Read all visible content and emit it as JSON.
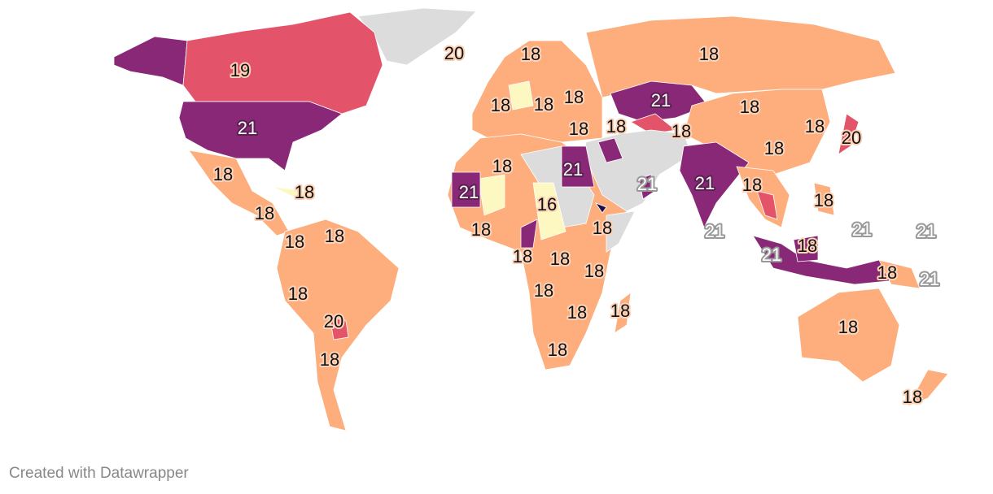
{
  "colors": {
    "v16": "#fdf8c2",
    "v18": "#fdae7c",
    "v19": "#e3546a",
    "v20": "#e3546a",
    "v21": "#8a2878",
    "v22": "#1d0c45",
    "nodata": "#dcdcdc"
  },
  "labels": [
    {
      "region": "Greenland",
      "value": "20"
    },
    {
      "region": "Scandinavia",
      "value": "18"
    },
    {
      "region": "Russia",
      "value": "18"
    },
    {
      "region": "Canada",
      "value": "19"
    },
    {
      "region": "Western Europe",
      "value": "18"
    },
    {
      "region": "Central Europe",
      "value": "18"
    },
    {
      "region": "Eastern Europe",
      "value": "18"
    },
    {
      "region": "Kazakhstan",
      "value": "21"
    },
    {
      "region": "Mongolia",
      "value": "18"
    },
    {
      "region": "Caucasus",
      "value": "18"
    },
    {
      "region": "Balkans",
      "value": "18"
    },
    {
      "region": "Central Asia",
      "value": "18"
    },
    {
      "region": "Korea",
      "value": "18"
    },
    {
      "region": "Japan",
      "value": "20"
    },
    {
      "region": "United States",
      "value": "21"
    },
    {
      "region": "China",
      "value": "18"
    },
    {
      "region": "Mexico",
      "value": "18"
    },
    {
      "region": "Algeria",
      "value": "18"
    },
    {
      "region": "Egypt",
      "value": "21"
    },
    {
      "region": "Oman",
      "value": "21"
    },
    {
      "region": "India",
      "value": "21"
    },
    {
      "region": "Myanmar",
      "value": "18"
    },
    {
      "region": "Mauritania",
      "value": "21"
    },
    {
      "region": "Cuba",
      "value": "18"
    },
    {
      "region": "Chad",
      "value": "16"
    },
    {
      "region": "Philippines",
      "value": "18"
    },
    {
      "region": "Central America",
      "value": "18"
    },
    {
      "region": "West Africa",
      "value": "18"
    },
    {
      "region": "Ethiopia",
      "value": "18"
    },
    {
      "region": "Sri Lanka",
      "value": "21"
    },
    {
      "region": "Micronesia",
      "value": "21"
    },
    {
      "region": "Marshall Islands",
      "value": "21"
    },
    {
      "region": "Colombia",
      "value": "18"
    },
    {
      "region": "Guyana",
      "value": "18"
    },
    {
      "region": "Borneo",
      "value": "18"
    },
    {
      "region": "Sumatra",
      "value": "21"
    },
    {
      "region": "Gabon",
      "value": "18"
    },
    {
      "region": "DR Congo",
      "value": "18"
    },
    {
      "region": "Tanzania",
      "value": "18"
    },
    {
      "region": "Papua New Guinea",
      "value": "18"
    },
    {
      "region": "Solomon Islands",
      "value": "21"
    },
    {
      "region": "Angola",
      "value": "18"
    },
    {
      "region": "Peru",
      "value": "18"
    },
    {
      "region": "Zambia",
      "value": "18"
    },
    {
      "region": "Madagascar",
      "value": "18"
    },
    {
      "region": "Paraguay",
      "value": "20"
    },
    {
      "region": "Australia",
      "value": "18"
    },
    {
      "region": "South Africa",
      "value": "18"
    },
    {
      "region": "Argentina",
      "value": "18"
    },
    {
      "region": "New Zealand",
      "value": "18"
    }
  ],
  "credit": "Created with Datawrapper"
}
